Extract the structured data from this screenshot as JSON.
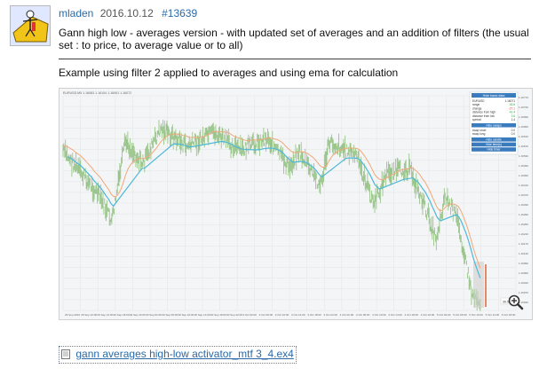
{
  "post": {
    "author": "mladen",
    "date": "2016.10.12",
    "id": "#13639",
    "text": "Gann high low - averages version - with updated set of averages and an addition of filters (the usual set : to price, to average value or to all)",
    "caption": "Example using filter 2 applied to averages and using ema for calculation"
  },
  "attachment": {
    "label": "gann averages high-low activator_mtf 3_4.ex4",
    "icon": "file-icon"
  },
  "chart": {
    "header_text": "EURUSD,M5  1.16083 1.16104 1.16061 1.16072",
    "zoom_icon": "magnifier-plus-icon",
    "last_price_label": "30.54",
    "panel": {
      "title": "Hide basic data",
      "rows": [
        {
          "label": "EURUSD",
          "value": "1.16071"
        },
        {
          "label": "range",
          "value": "43.6"
        },
        {
          "label": "change",
          "value": "-27.1"
        },
        {
          "label": "distance from high",
          "value": "41.4"
        },
        {
          "label": "distance from low",
          "value": "2.6"
        },
        {
          "label": "spread",
          "value": "1.4"
        }
      ],
      "swaps_button": "Hide swaps",
      "swap_rows": [
        {
          "label": "swap short",
          "value": "0.0"
        },
        {
          "label": "swap long",
          "value": "0.0"
        }
      ],
      "buttons": [
        "Hide candle",
        "Hide time(s)",
        "Hide timer"
      ]
    },
    "y_ticks": [
      "1.16770",
      "1.16730",
      "1.16690",
      "1.16650",
      "1.16610",
      "1.16570",
      "1.16530",
      "1.16490",
      "1.16450",
      "1.16410",
      "1.16370",
      "1.16330",
      "1.16290",
      "1.16250",
      "1.16210",
      "1.16170",
      "1.16130",
      "1.16090",
      "1.16050",
      "1.16010",
      "1.15970",
      "1.15930"
    ],
    "x_ticks": [
      "29 Sep 2016",
      "29 Sep 10:00",
      "29 Sep 14:00",
      "29 Sep 18:00",
      "29 Sep 22:00",
      "30 Sep 02:00",
      "30 Sep 06:00",
      "30 Sep 10:00",
      "30 Sep 14:00",
      "30 Sep 18:00",
      "30 Sep 22:00",
      "3 Oct 02:00",
      "3 Oct 06:00",
      "3 Oct 10:00",
      "3 Oct 14:00",
      "3 Oct 18:00",
      "3 Oct 22:00",
      "4 Oct 02:00",
      "4 Oct 06:00",
      "4 Oct 10:00",
      "4 Oct 14:00",
      "4 Oct 18:00",
      "4 Oct 22:00",
      "5 Oct 02:00",
      "5 Oct 06:00",
      "5 Oct 10:00",
      "5 Oct 14:00",
      "5 Oct 18:00"
    ],
    "colors": {
      "candles": "#8fbf7f",
      "gann_up": "#4fb8d8",
      "gann_down": "#f0a878",
      "panel_header": "#3a7bbd",
      "background": "#eef0f2"
    }
  }
}
